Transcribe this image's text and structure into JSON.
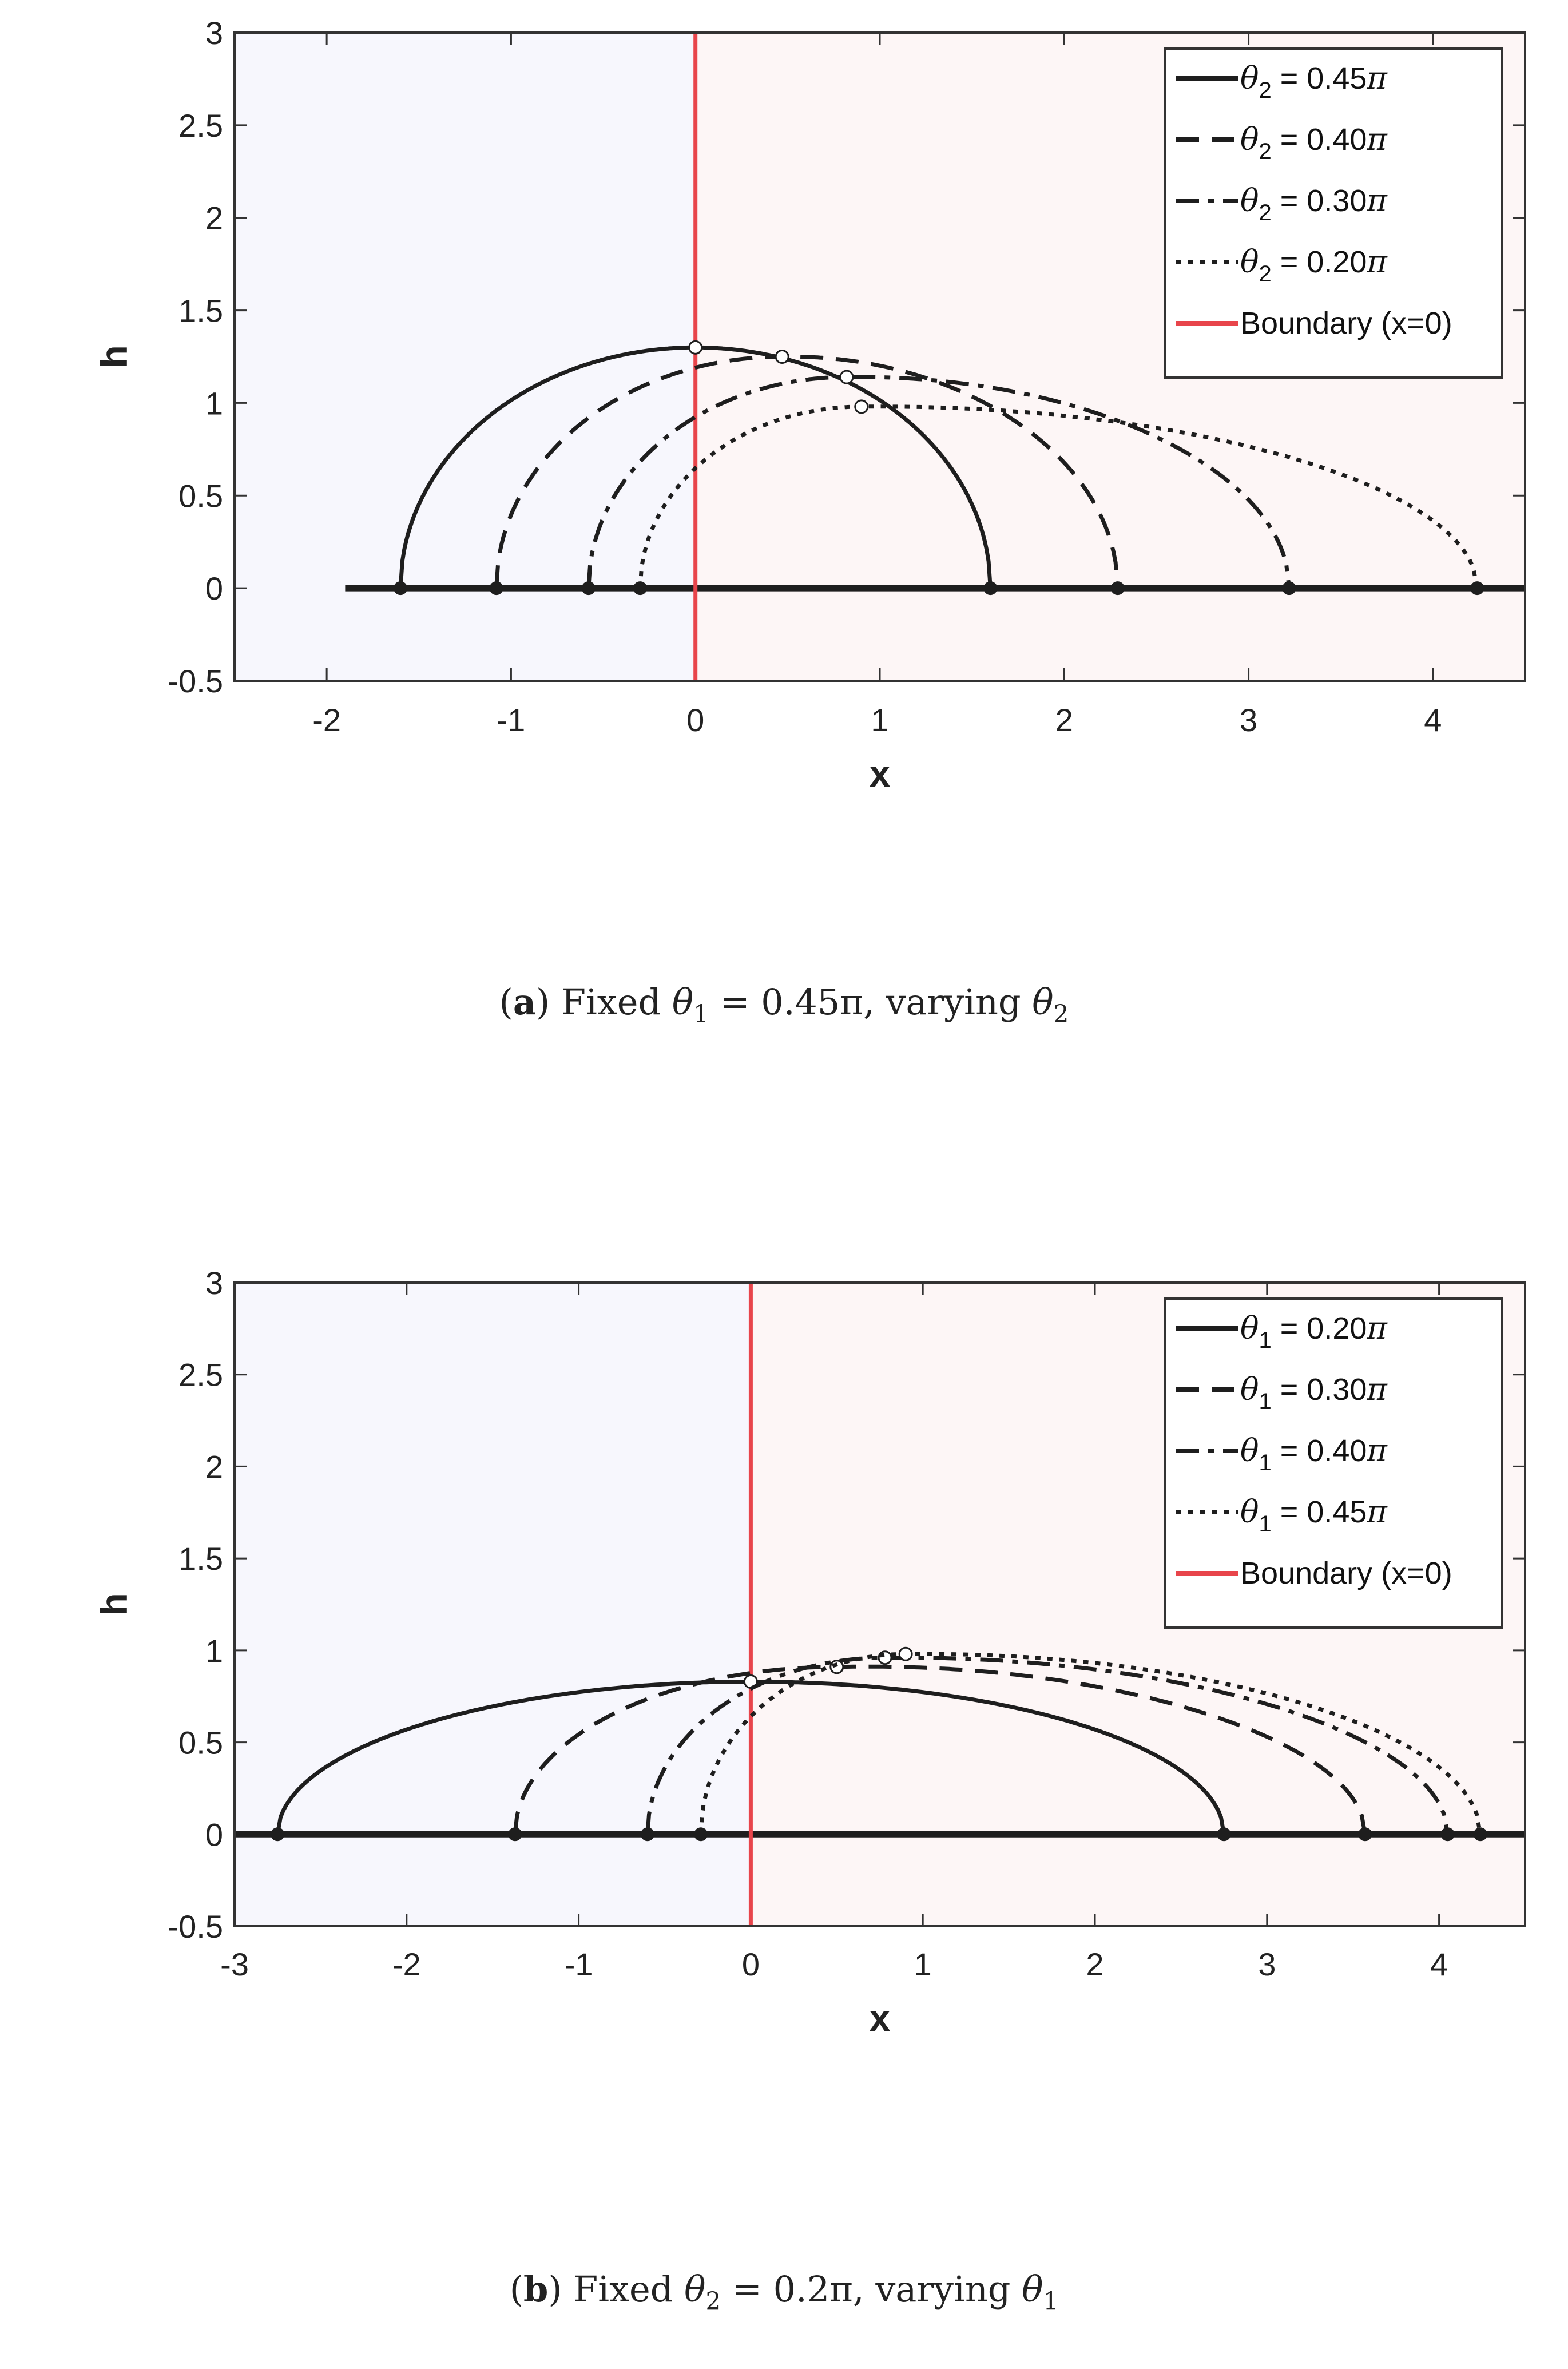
{
  "colors": {
    "left_region": "#f7f7fd",
    "right_region": "#fdf6f6",
    "curve": "#1e1e1e",
    "boundary": "#e8454b",
    "axis": "#333333"
  },
  "captions": {
    "a": {
      "label": "a",
      "text_before": "Fixed ",
      "sym1": "θ",
      "sub1": "1",
      "middle": " = 0.45π, varying ",
      "sym2": "θ",
      "sub2": "2"
    },
    "b": {
      "label": "b",
      "text_before": "Fixed ",
      "sym1": "θ",
      "sub1": "2",
      "middle": " = 0.2π, varying ",
      "sym2": "θ",
      "sub2": "1"
    }
  },
  "chart_data": [
    {
      "id": "a",
      "type": "line",
      "xlabel": "x",
      "ylabel": "h",
      "xlim": [
        -2.5,
        4.5
      ],
      "ylim": [
        -0.5,
        3
      ],
      "xticks": [
        -2,
        -1,
        0,
        1,
        2,
        3,
        4
      ],
      "yticks": [
        -0.5,
        0,
        0.5,
        1,
        1.5,
        2,
        2.5,
        3
      ],
      "ytick_labels": [
        "-0.5",
        "0",
        "0.5",
        "1",
        "1.5",
        "2",
        "2.5",
        "3"
      ],
      "baseline": {
        "y": 0,
        "x_from": -1.9,
        "x_to": 4.5
      },
      "boundary": {
        "x": 0,
        "label": "Boundary (x=0)"
      },
      "legend_position": "top-right",
      "series": [
        {
          "legend_symbol": "θ",
          "legend_sub": "2",
          "legend_value": " = 0.45",
          "legend_pi": "π",
          "dash": "solid",
          "x_left": -1.6,
          "x_right": 1.6,
          "x_junction": 0.0,
          "h_junction": 1.3,
          "h_peak": 1.3
        },
        {
          "legend_symbol": "θ",
          "legend_sub": "2",
          "legend_value": " = 0.40",
          "legend_pi": "π",
          "dash": "dash",
          "x_left": -1.08,
          "x_right": 2.29,
          "x_junction": 0.47,
          "h_junction": 1.25,
          "h_peak": 1.26
        },
        {
          "legend_symbol": "θ",
          "legend_sub": "2",
          "legend_value": " = 0.30",
          "legend_pi": "π",
          "dash": "dashdot",
          "x_left": -0.58,
          "x_right": 3.22,
          "x_junction": 0.82,
          "h_junction": 1.14,
          "h_peak": 1.15
        },
        {
          "legend_symbol": "θ",
          "legend_sub": "2",
          "legend_value": " = 0.20",
          "legend_pi": "π",
          "dash": "dot",
          "x_left": -0.3,
          "x_right": 4.24,
          "x_junction": 0.9,
          "h_junction": 0.98,
          "h_peak": 0.99
        }
      ]
    },
    {
      "id": "b",
      "type": "line",
      "xlabel": "x",
      "ylabel": "h",
      "xlim": [
        -3,
        4.5
      ],
      "ylim": [
        -0.5,
        3
      ],
      "xticks": [
        -3,
        -2,
        -1,
        0,
        1,
        2,
        3,
        4
      ],
      "yticks": [
        -0.5,
        0,
        0.5,
        1,
        1.5,
        2,
        2.5,
        3
      ],
      "ytick_labels": [
        "-0.5",
        "0",
        "0.5",
        "1",
        "1.5",
        "2",
        "2.5",
        "3"
      ],
      "baseline": {
        "y": 0,
        "x_from": -3,
        "x_to": 4.5
      },
      "boundary": {
        "x": 0,
        "label": "Boundary (x=0)"
      },
      "legend_position": "top-right",
      "series": [
        {
          "legend_symbol": "θ",
          "legend_sub": "1",
          "legend_value": " = 0.20",
          "legend_pi": "π",
          "dash": "solid",
          "x_left": -2.75,
          "x_right": 2.75,
          "x_junction": 0.0,
          "h_junction": 0.83,
          "h_peak": 0.83
        },
        {
          "legend_symbol": "θ",
          "legend_sub": "1",
          "legend_value": " = 0.30",
          "legend_pi": "π",
          "dash": "dash",
          "x_left": -1.37,
          "x_right": 3.57,
          "x_junction": 0.5,
          "h_junction": 0.91,
          "h_peak": 0.93
        },
        {
          "legend_symbol": "θ",
          "legend_sub": "1",
          "legend_value": " = 0.40",
          "legend_pi": "π",
          "dash": "dashdot",
          "x_left": -0.6,
          "x_right": 4.05,
          "x_junction": 0.78,
          "h_junction": 0.96,
          "h_peak": 0.97
        },
        {
          "legend_symbol": "θ",
          "legend_sub": "1",
          "legend_value": " = 0.45",
          "legend_pi": "π",
          "dash": "dot",
          "x_left": -0.29,
          "x_right": 4.24,
          "x_junction": 0.9,
          "h_junction": 0.98,
          "h_peak": 0.99
        }
      ]
    }
  ]
}
